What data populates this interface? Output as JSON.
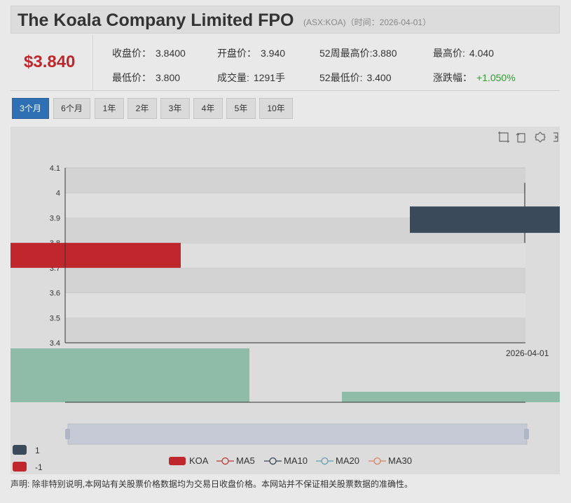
{
  "header": {
    "name": "The Koala Company Limited FPO",
    "meta": "(ASX:KOA)（时间：2026-04-01）"
  },
  "quote": {
    "price": "$3.840",
    "close_label": "收盘价：",
    "close_value": "3.8400",
    "open_label": "开盘价：",
    "open_value": "3.940",
    "high52_label": "52周最高价:",
    "high52_value": "3.880",
    "high_label": "最高价:",
    "high_value": "4.040",
    "low_label": "最低价：",
    "low_value": "3.800",
    "volume_label": "成交量:",
    "volume_value": "1291手",
    "low52_label": "52最低价:",
    "low52_value": "3.400",
    "change_label": "涨跌幅：",
    "change_value": "+1.050%"
  },
  "periods": [
    "3个月",
    "6个月",
    "1年",
    "2年",
    "3年",
    "4年",
    "5年",
    "10年"
  ],
  "selected_period": "3个月",
  "toolbox": {
    "icons": [
      "zoom-select-icon",
      "zoom-reset-icon",
      "restore-icon",
      "save-image-icon"
    ]
  },
  "colors": {
    "up": "#c0272d",
    "down": "#3a4a5a",
    "volume": "#8fbca8",
    "zoom_slider": "#c5cad6",
    "accent": "#2f6fb4",
    "ma5": "#c23531",
    "ma10": "#2f4554",
    "ma20": "#61a0a8",
    "ma30": "#d48265"
  },
  "chart_data": {
    "type": "candlestick",
    "x": [
      "2026-04-01"
    ],
    "ylim": [
      3.4,
      4.1
    ],
    "yticks": [
      3.4,
      3.5,
      3.6,
      3.7,
      3.8,
      3.9,
      4,
      4.1
    ],
    "ohlc": [
      {
        "date": "2026-04-01",
        "open": 3.94,
        "close": 3.84,
        "low": 3.8,
        "high": 4.04
      }
    ],
    "volume": [
      1291
    ],
    "grid": true,
    "legend_position": "bottom",
    "series": [
      {
        "name": "KOA"
      },
      {
        "name": "MA5"
      },
      {
        "name": "MA10"
      },
      {
        "name": "MA20"
      },
      {
        "name": "MA30"
      }
    ],
    "visual_map": [
      {
        "label": "1",
        "color": "#3a4a5a"
      },
      {
        "label": "-1",
        "color": "#c0272d"
      }
    ]
  },
  "disclaimer": "声明: 除非特别说明,本网站有关股票价格数据均为交易日收盘价格。本网站并不保证相关股票数据的准确性。"
}
